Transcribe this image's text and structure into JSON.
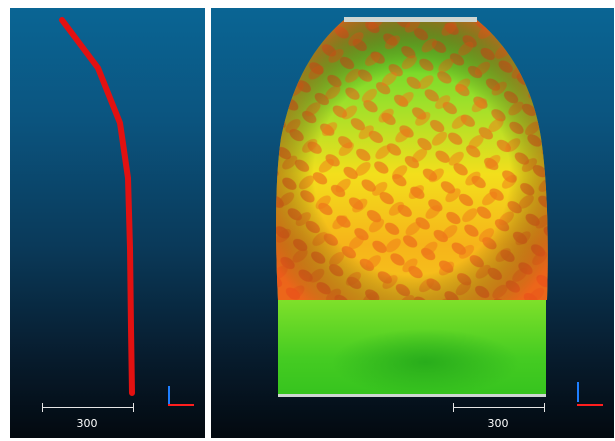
{
  "left_view": {
    "scale_label": "300",
    "profile_color": "#e21111"
  },
  "right_view": {
    "scale_label": "300",
    "colors": {
      "low": "#35c21f",
      "mid": "#f0e51a",
      "high": "#ea4f12",
      "top_band": "#cfd6d2"
    }
  },
  "axes": {
    "x_color": "#ff1e1e",
    "y_color": "#1e7fff"
  }
}
